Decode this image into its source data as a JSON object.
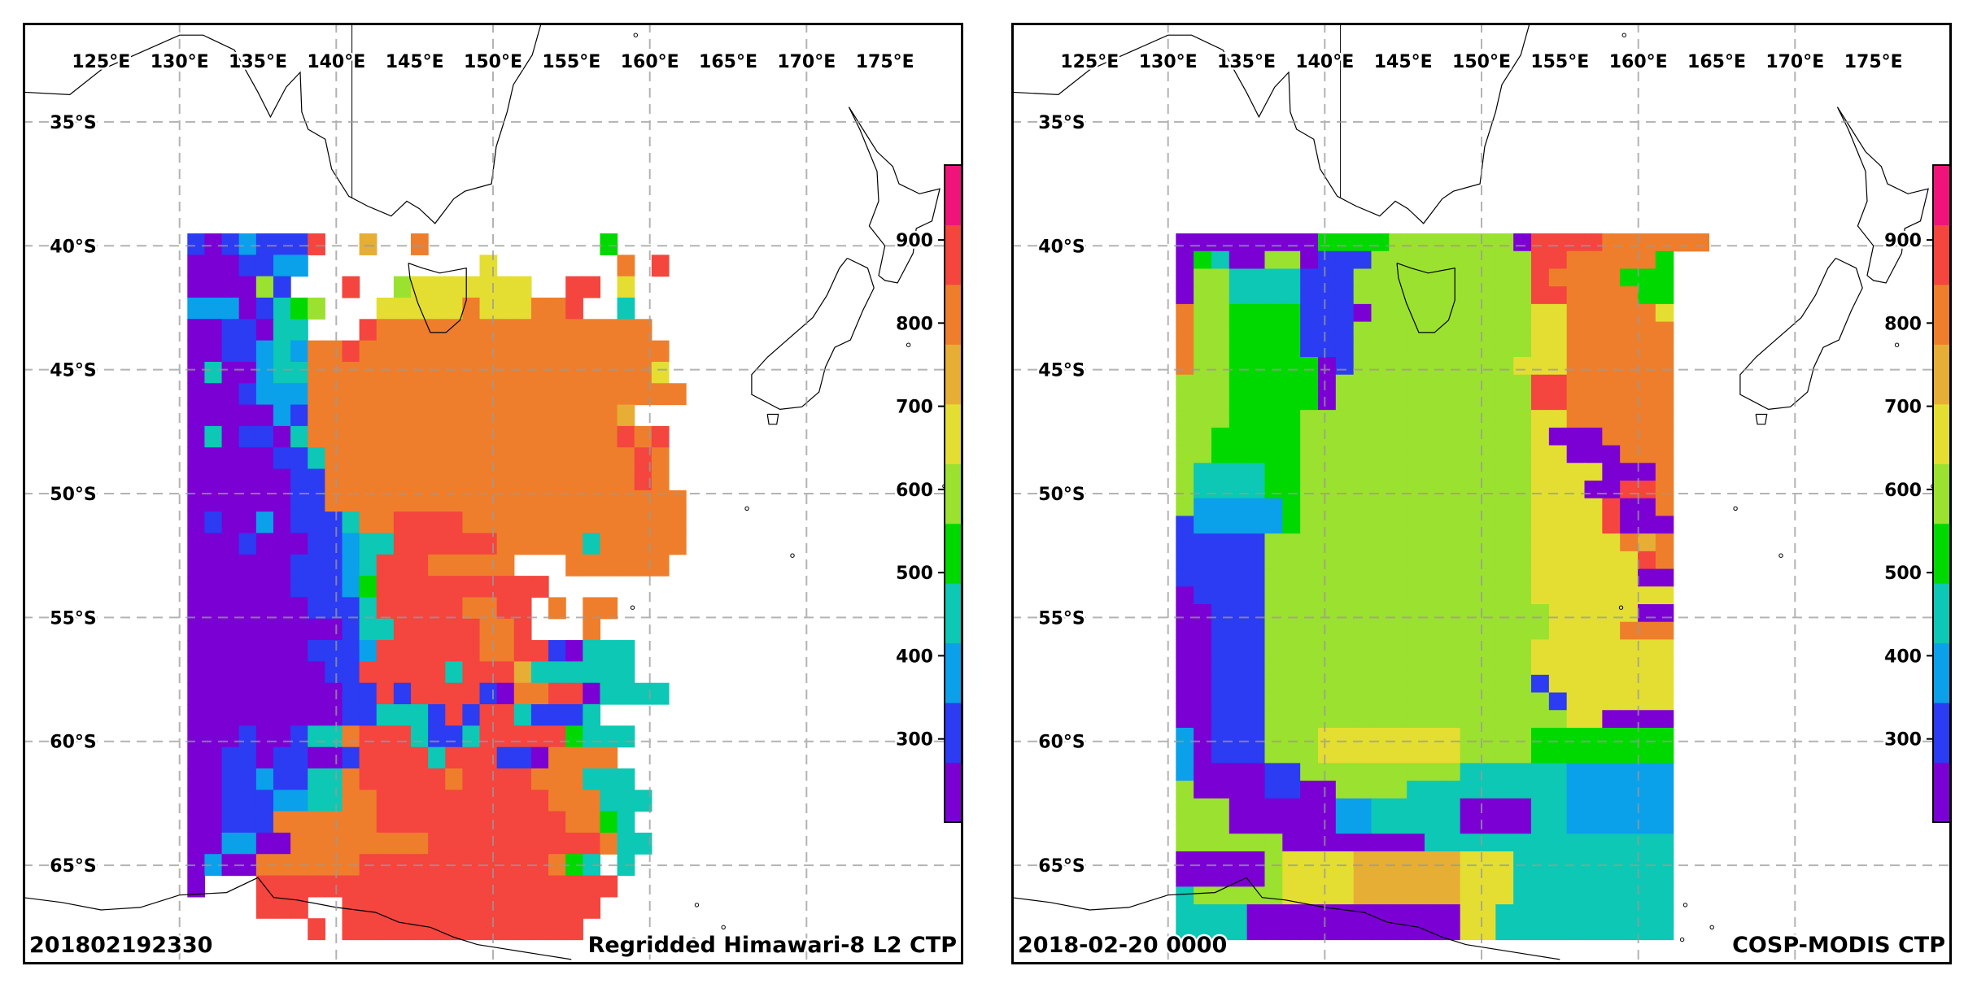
{
  "palette": [
    "#7b00d4",
    "#2b3cf2",
    "#0ba0ea",
    "#0cc8b4",
    "#00d900",
    "#9be12f",
    "#e4de32",
    "#e6ae34",
    "#ee7e2c",
    "#f4453f",
    "#f0147a"
  ],
  "lon_ticks": [
    "125°E",
    "130°E",
    "135°E",
    "140°E",
    "145°E",
    "150°E",
    "155°E",
    "160°E",
    "165°E",
    "170°E",
    "175°E"
  ],
  "lat_ticks": [
    "35°S",
    "40°S",
    "45°S",
    "50°S",
    "55°S",
    "60°S",
    "65°S"
  ],
  "colorbar_ticks": [
    "300",
    "400",
    "500",
    "600",
    "700",
    "800",
    "900"
  ],
  "colorbar_range": [
    200,
    990
  ],
  "map_extent": {
    "lon": [
      120,
      180
    ],
    "lat": [
      -31,
      -69
    ]
  },
  "grid_extent": {
    "lon": [
      130.5,
      164.5
    ],
    "lat": [
      -39.5,
      -68
    ]
  },
  "panels": [
    {
      "id": "himawari",
      "left_label": "201802192330",
      "right_label": "Regridded Himawari-8 L2 CTP",
      "rows": [
        "10121119..7..8..........4......",
        "0001122..........6.......8.9",
        "000051...9..56666666..99.6.",
        "22201345...666668666889..3.",
        "0011033...98888888888888888..",
        "0011232889888888888888888888",
        "0300233888888888888888888886",
        "00012228888888888888888888888",
        "00000218888888888888888887..",
        "0301103888888888888888888989",
        "0000011388888888888888888898",
        "0000001188888888888888888898",
        "00000011888888888888888888888",
        "01002011138899998888888888888",
        "00010001123399999988888388888",
        "0000001112399988888...888888",
        "000000111249999999999...",
        "00000001113999998899.8.88",
        "00000000013399999889...8",
        "00000001112999999889910333",
        "00000000119999939997333333",
        "0000000001191999910889903333",
        "000000000113331919931113",
        "00010013389993113999994333",
        "0011011001999939991108888",
        "00112113389999989999888333",
        "001112233889999999999888333",
        "00111888888999999999998843",
        "002200888888889999999999833",
        "020088888899999999999843.3",
        "0...999999999999999999999",
        "....999..999999999999999",
        ".......9.99999999999999"
      ]
    },
    {
      "id": "cosp",
      "left_label": "2018-02-20 0000",
      "right_label": "COSP-MODIS CTP",
      "rows": [
        "000000004444555555509999888888",
        "0430055011155555555599888884",
        "0553333111555555555598888444",
        "0553333111555555555599888844",
        "8554444111055555555566888886",
        "8554444111555555555566888888",
        "8554444111555555555566888888",
        "8554444401555555555666888888",
        "5554444405555555555599888888",
        "5554444405555555555599888888",
        "5554444555555555555566888888",
        "5544444555555555555560008888",
        "5544444555555555555566000888",
        "5333344555555555555566660008",
        "5333344555555555555566600998",
        "5222224555555555555566669008",
        "1222224555555555555566669000",
        "1111155555555555555566666878",
        "1111155555555555555566666698",
        "1111155555555555555566666600",
        "0111155555555555555566666666",
        "0011155555555555555556666600",
        "0011155555555555555556666888",
        "0011155555555555555566666666",
        "0011155555555555555566666666",
        "0011155555555555555516666666",
        "0011155555555555555551666666",
        "0011155555555555555555660000",
        "2011155566666666555544444444",
        "2011155566666666555544444444",
        "2000011555555555333333222222",
        "5000011005555333333333222222",
        "5550000002233333000033222222",
        "5550000002233333000033222222",
        "5555550000000033333333333333",
        "0000056666777777666333333333",
        "0000056666777777666333333333",
        "3555556666777777666333333333",
        "3333000000000000663333333333",
        "3333000000000000663333333333"
      ]
    }
  ]
}
